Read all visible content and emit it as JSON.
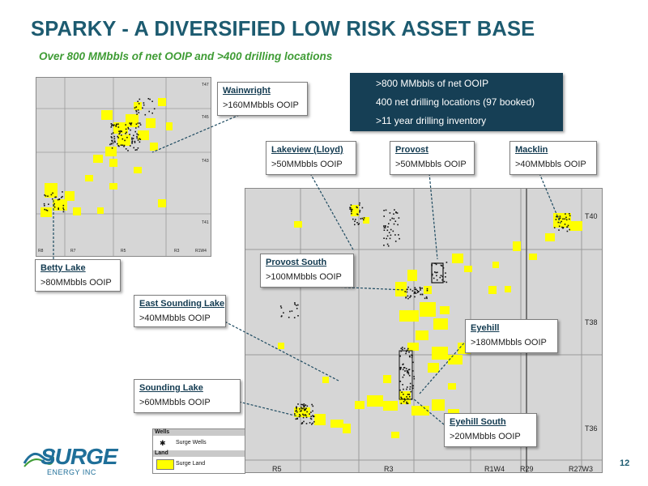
{
  "title": "SPARKY - A DIVERSIFIED LOW RISK ASSET BASE",
  "subtitle": "Over 800 MMbbls of net OOIP and >400 drilling locations",
  "info_box": {
    "line1": ">800 MMbbls of net OOIP",
    "line2": "400 net drilling locations (97 booked)",
    "line3": ">11 year drilling inventory",
    "bg_color": "#163f55"
  },
  "callouts": [
    {
      "id": "wainwright",
      "name": "Wainwright",
      "value": ">160MMbbls OOIP"
    },
    {
      "id": "lakeview",
      "name": "Lakeview (Lloyd)",
      "value": ">50MMbbls OOIP"
    },
    {
      "id": "provost",
      "name": "Provost",
      "value": ">50MMbbls OOIP"
    },
    {
      "id": "macklin",
      "name": "Macklin",
      "value": ">40MMbbls OOIP"
    },
    {
      "id": "betty",
      "name": "Betty Lake",
      "value": ">80MMbbls OOIP"
    },
    {
      "id": "provost-south",
      "name": "Provost South",
      "value": ">100MMbbls OOIP"
    },
    {
      "id": "east-sounding",
      "name": "East Sounding Lake",
      "value": ">40MMbbls OOIP"
    },
    {
      "id": "eyehill",
      "name": "Eyehill",
      "value": ">180MMbbls OOIP"
    },
    {
      "id": "sounding",
      "name": "Sounding Lake",
      "value": ">60MMbbls OOIP"
    },
    {
      "id": "eyehill-south",
      "name": "Eyehill South",
      "value": ">20MMbbls OOIP"
    }
  ],
  "main_map": {
    "range_labels": [
      "R5",
      "R3",
      "R1W4",
      "R29",
      "R27W3"
    ],
    "township_labels": [
      "T40",
      "T38",
      "T36"
    ]
  },
  "inset_map": {
    "range_labels": [
      "R8",
      "R7",
      "R5",
      "R3",
      "R1W4"
    ],
    "township_labels": [
      "T47",
      "T45",
      "T43",
      "T41"
    ]
  },
  "legend": {
    "wells_header": "Wells",
    "wells_item": "Surge Wells",
    "land_header": "Land",
    "land_item": "Surge Land",
    "land_color": "#ffff00"
  },
  "logo": {
    "name": "SURGE",
    "sub": "ENERGY INC"
  },
  "page_number": "12",
  "colors": {
    "title": "#1d5b70",
    "subtitle": "#3f9c35",
    "land": "#ffff00",
    "map_bg": "#d6d6d6"
  }
}
